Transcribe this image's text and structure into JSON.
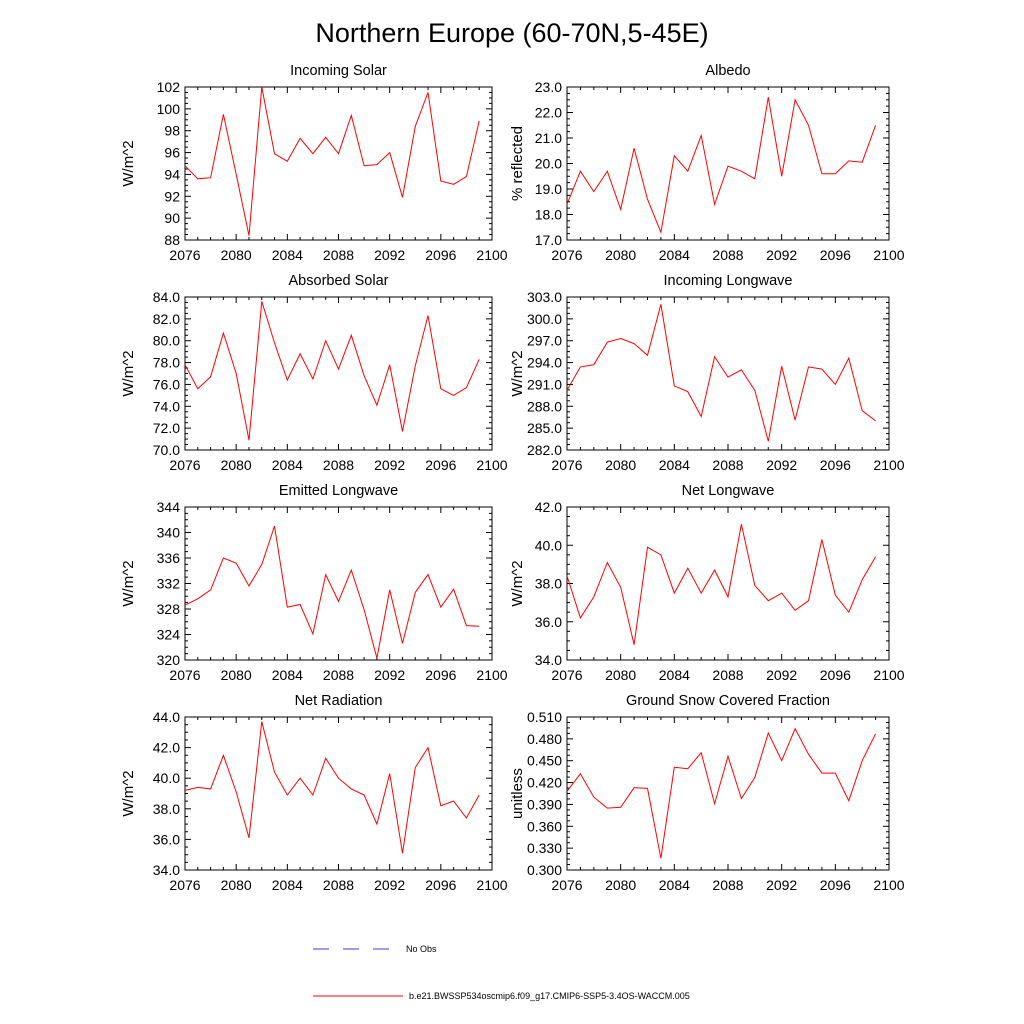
{
  "figure": {
    "title": "Northern Europe (60-70N,5-45E)"
  },
  "legend": {
    "obs_label": "No Obs",
    "obs_color": "#3b3bd6",
    "model_label": "b.e21.BWSSP534oscmip6.f09_g17.CMIP6-SSP5-3.4OS-WACCM.005",
    "model_color": "#ff0000"
  },
  "chart_data": [
    {
      "type": "line",
      "title": "Incoming Solar",
      "ylabel": "W/m^2",
      "xlim": [
        2076,
        2100
      ],
      "ylim": [
        88,
        102
      ],
      "xticks": [
        "2076",
        "2080",
        "2084",
        "2088",
        "2092",
        "2096",
        "2100"
      ],
      "yticks": [
        "88",
        "90",
        "92",
        "94",
        "96",
        "98",
        "100",
        "102"
      ],
      "x": [
        2076,
        2077,
        2078,
        2079,
        2080,
        2081,
        2082,
        2083,
        2084,
        2085,
        2086,
        2087,
        2088,
        2089,
        2090,
        2091,
        2092,
        2093,
        2094,
        2095,
        2096,
        2097,
        2098,
        2099
      ],
      "values": [
        94.8,
        93.6,
        93.7,
        99.5,
        94.0,
        88.4,
        102.0,
        95.9,
        95.2,
        97.3,
        95.9,
        97.4,
        95.9,
        99.4,
        94.8,
        94.9,
        96.0,
        91.9,
        98.4,
        101.5,
        93.4,
        93.1,
        93.8,
        98.9
      ]
    },
    {
      "type": "line",
      "title": "Albedo",
      "ylabel": "% reflected",
      "xlim": [
        2076,
        2100
      ],
      "ylim": [
        17,
        23
      ],
      "xticks": [
        "2076",
        "2080",
        "2084",
        "2088",
        "2092",
        "2096",
        "2100"
      ],
      "yticks": [
        "17.0",
        "18.0",
        "19.0",
        "20.0",
        "21.0",
        "22.0",
        "23.0"
      ],
      "x": [
        2076,
        2077,
        2078,
        2079,
        2080,
        2081,
        2082,
        2083,
        2084,
        2085,
        2086,
        2087,
        2088,
        2089,
        2090,
        2091,
        2092,
        2093,
        2094,
        2095,
        2096,
        2097,
        2098,
        2099
      ],
      "values": [
        18.4,
        19.7,
        18.9,
        19.7,
        18.2,
        20.6,
        18.6,
        17.3,
        20.3,
        19.7,
        21.1,
        18.4,
        19.9,
        19.7,
        19.4,
        22.6,
        19.5,
        22.5,
        21.5,
        19.6,
        19.6,
        20.1,
        20.05,
        21.5
      ]
    },
    {
      "type": "line",
      "title": "Absorbed Solar",
      "ylabel": "W/m^2",
      "xlim": [
        2076,
        2100
      ],
      "ylim": [
        70,
        84
      ],
      "xticks": [
        "2076",
        "2080",
        "2084",
        "2088",
        "2092",
        "2096",
        "2100"
      ],
      "yticks": [
        "70.0",
        "72.0",
        "74.0",
        "76.0",
        "78.0",
        "80.0",
        "82.0",
        "84.0"
      ],
      "x": [
        2076,
        2077,
        2078,
        2079,
        2080,
        2081,
        2082,
        2083,
        2084,
        2085,
        2086,
        2087,
        2088,
        2089,
        2090,
        2091,
        2092,
        2093,
        2094,
        2095,
        2096,
        2097,
        2098,
        2099
      ],
      "values": [
        77.8,
        75.6,
        76.7,
        80.7,
        77.0,
        70.9,
        83.6,
        79.8,
        76.4,
        78.8,
        76.5,
        80.0,
        77.4,
        80.5,
        76.8,
        74.1,
        77.8,
        71.7,
        77.7,
        82.3,
        75.6,
        75.0,
        75.7,
        78.3
      ]
    },
    {
      "type": "line",
      "title": "Incoming Longwave",
      "ylabel": "W/m^2",
      "xlim": [
        2076,
        2100
      ],
      "ylim": [
        282,
        303
      ],
      "xticks": [
        "2076",
        "2080",
        "2084",
        "2088",
        "2092",
        "2096",
        "2100"
      ],
      "yticks": [
        "282.0",
        "285.0",
        "288.0",
        "291.0",
        "294.0",
        "297.0",
        "300.0",
        "303.0"
      ],
      "x": [
        2076,
        2077,
        2078,
        2079,
        2080,
        2081,
        2082,
        2083,
        2084,
        2085,
        2086,
        2087,
        2088,
        2089,
        2090,
        2091,
        2092,
        2093,
        2094,
        2095,
        2096,
        2097,
        2098,
        2099
      ],
      "values": [
        290.2,
        293.4,
        293.7,
        296.8,
        297.3,
        296.6,
        295.0,
        302.0,
        290.8,
        290.0,
        286.6,
        294.8,
        292.0,
        293.0,
        290.2,
        283.2,
        293.5,
        286.1,
        293.4,
        293.1,
        291.0,
        294.6,
        287.4,
        286.0
      ]
    },
    {
      "type": "line",
      "title": "Emitted Longwave",
      "ylabel": "W/m^2",
      "xlim": [
        2076,
        2100
      ],
      "ylim": [
        320,
        344
      ],
      "xticks": [
        "2076",
        "2080",
        "2084",
        "2088",
        "2092",
        "2096",
        "2100"
      ],
      "yticks": [
        "320",
        "324",
        "328",
        "332",
        "336",
        "340",
        "344"
      ],
      "x": [
        2076,
        2077,
        2078,
        2079,
        2080,
        2081,
        2082,
        2083,
        2084,
        2085,
        2086,
        2087,
        2088,
        2089,
        2090,
        2091,
        2092,
        2093,
        2094,
        2095,
        2096,
        2097,
        2098,
        2099
      ],
      "values": [
        328.6,
        329.6,
        331.0,
        336.0,
        335.2,
        331.6,
        335.0,
        341.0,
        328.3,
        328.7,
        324.1,
        333.4,
        329.2,
        334.1,
        327.9,
        320.3,
        331.0,
        322.6,
        330.6,
        333.4,
        328.3,
        331.1,
        325.4,
        325.3
      ]
    },
    {
      "type": "line",
      "title": "Net Longwave",
      "ylabel": "W/m^2",
      "xlim": [
        2076,
        2100
      ],
      "ylim": [
        34,
        42
      ],
      "xticks": [
        "2076",
        "2080",
        "2084",
        "2088",
        "2092",
        "2096",
        "2100"
      ],
      "yticks": [
        "34.0",
        "36.0",
        "38.0",
        "40.0",
        "42.0"
      ],
      "x": [
        2076,
        2077,
        2078,
        2079,
        2080,
        2081,
        2082,
        2083,
        2084,
        2085,
        2086,
        2087,
        2088,
        2089,
        2090,
        2091,
        2092,
        2093,
        2094,
        2095,
        2096,
        2097,
        2098,
        2099
      ],
      "values": [
        38.4,
        36.2,
        37.3,
        39.1,
        37.8,
        34.8,
        39.9,
        39.5,
        37.5,
        38.8,
        37.5,
        38.7,
        37.3,
        41.1,
        37.9,
        37.1,
        37.5,
        36.6,
        37.1,
        40.3,
        37.4,
        36.5,
        38.2,
        39.4
      ]
    },
    {
      "type": "line",
      "title": "Net Radiation",
      "ylabel": "W/m^2",
      "xlim": [
        2076,
        2100
      ],
      "ylim": [
        34,
        44
      ],
      "xticks": [
        "2076",
        "2080",
        "2084",
        "2088",
        "2092",
        "2096",
        "2100"
      ],
      "yticks": [
        "34.0",
        "36.0",
        "38.0",
        "40.0",
        "42.0",
        "44.0"
      ],
      "x": [
        2076,
        2077,
        2078,
        2079,
        2080,
        2081,
        2082,
        2083,
        2084,
        2085,
        2086,
        2087,
        2088,
        2089,
        2090,
        2091,
        2092,
        2093,
        2094,
        2095,
        2096,
        2097,
        2098,
        2099
      ],
      "values": [
        39.2,
        39.4,
        39.3,
        41.5,
        39.1,
        36.1,
        43.7,
        40.4,
        38.9,
        40.0,
        38.9,
        41.3,
        40.0,
        39.3,
        38.9,
        37.0,
        40.3,
        35.1,
        40.7,
        42.0,
        38.2,
        38.5,
        37.4,
        38.9
      ]
    },
    {
      "type": "line",
      "title": "Ground Snow Covered Fraction",
      "ylabel": "unitless",
      "xlim": [
        2076,
        2100
      ],
      "ylim": [
        0.3,
        0.51
      ],
      "xticks": [
        "2076",
        "2080",
        "2084",
        "2088",
        "2092",
        "2096",
        "2100"
      ],
      "yticks": [
        "0.300",
        "0.330",
        "0.360",
        "0.390",
        "0.420",
        "0.450",
        "0.480",
        "0.510"
      ],
      "x": [
        2076,
        2077,
        2078,
        2079,
        2080,
        2081,
        2082,
        2083,
        2084,
        2085,
        2086,
        2087,
        2088,
        2089,
        2090,
        2091,
        2092,
        2093,
        2094,
        2095,
        2096,
        2097,
        2098,
        2099
      ],
      "values": [
        0.408,
        0.432,
        0.4,
        0.385,
        0.386,
        0.413,
        0.412,
        0.316,
        0.441,
        0.439,
        0.461,
        0.391,
        0.456,
        0.398,
        0.427,
        0.488,
        0.45,
        0.494,
        0.459,
        0.433,
        0.433,
        0.395,
        0.45,
        0.487
      ]
    }
  ]
}
